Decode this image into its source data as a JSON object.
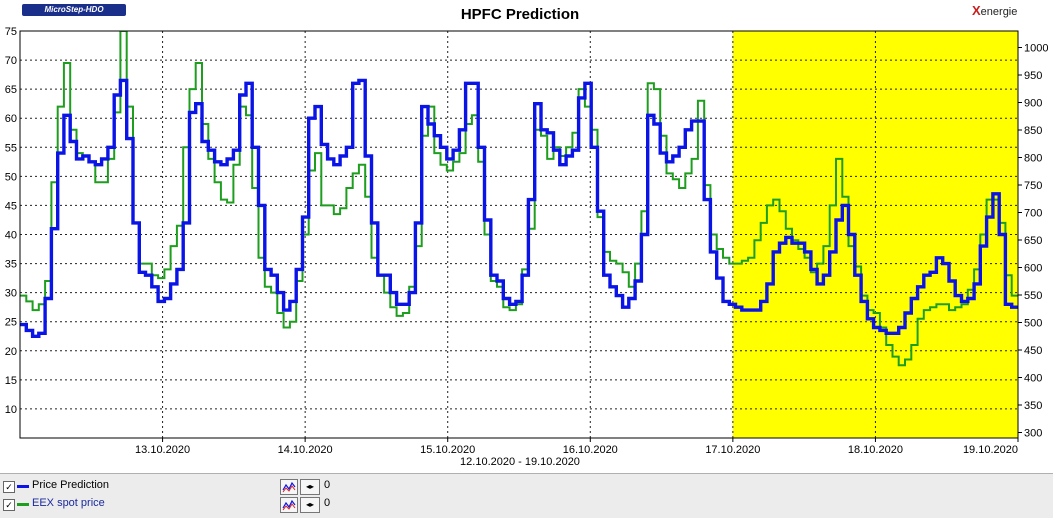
{
  "header": {
    "title": "HPFC Prediction",
    "logo_left": "MicroStep-HDO",
    "logo_right_x": "X",
    "logo_right_rest": "energie",
    "period": "12.10.2020 - 19.10.2020"
  },
  "legend": [
    {
      "label": "Price Prediction",
      "color": "#0a14e6",
      "value": "0"
    },
    {
      "label": "EEX spot price",
      "color": "#1e9e1e",
      "value": "0"
    }
  ],
  "colors": {
    "highlight": "#ffff00",
    "prediction": "#0a14e6",
    "spot": "#1e9e1e"
  },
  "chart_data": {
    "type": "line",
    "title": "HPFC Prediction",
    "x_range": [
      "12.10.2020 00:00",
      "19.10.2020 00:00"
    ],
    "x_ticks": [
      "13.10.2020",
      "14.10.2020",
      "15.10.2020",
      "16.10.2020",
      "17.10.2020",
      "18.10.2020",
      "19.10.2020"
    ],
    "y_left": {
      "ticks": [
        10,
        15,
        20,
        25,
        30,
        35,
        40,
        45,
        50,
        55,
        60,
        65,
        70,
        75
      ],
      "lim": [
        5,
        75
      ]
    },
    "y_right": {
      "ticks": [
        300,
        350,
        400,
        450,
        500,
        550,
        600,
        650,
        700,
        750,
        800,
        850,
        900,
        950,
        1000
      ],
      "lim": [
        290,
        1030
      ]
    },
    "highlight_range": [
      "17.10.2020",
      "19.10.2020"
    ],
    "grid": true,
    "series": [
      {
        "name": "Price Prediction",
        "values": [
          24.5,
          23.5,
          22.5,
          23,
          29,
          41,
          54,
          60.5,
          56,
          53,
          53.5,
          52.5,
          52,
          53,
          55,
          64,
          66.5,
          56.5,
          42,
          33.5,
          33,
          31,
          28.5,
          29,
          31.5,
          34,
          42,
          61,
          62.5,
          56,
          54.5,
          52.5,
          52,
          53,
          54.5,
          64,
          66,
          55,
          45,
          34,
          33,
          30,
          27,
          28.5,
          34,
          43,
          60,
          62,
          55.5,
          53,
          52,
          53.5,
          55,
          66,
          66.5,
          53.5,
          42,
          33,
          33,
          30,
          28,
          28,
          30,
          42,
          62,
          59,
          57,
          55,
          53,
          54.5,
          58,
          66,
          66,
          55,
          42.5,
          33,
          32,
          29,
          28,
          28.5,
          33,
          46,
          62.5,
          58,
          57.5,
          54.5,
          52,
          53.5,
          54.5,
          63.5,
          66,
          55,
          44,
          33,
          31,
          29.5,
          27.5,
          29,
          32,
          40,
          60.5,
          59,
          54,
          52.5,
          53.5,
          55,
          58,
          59.5,
          59.5,
          46,
          37,
          32.5,
          28.5,
          28,
          27.5,
          27,
          27,
          27,
          28.5,
          31.5,
          37,
          38.5,
          39.5,
          38.5,
          38.5,
          37,
          34,
          31.5,
          33,
          37,
          42.5,
          45,
          40,
          33,
          28.5,
          25.5,
          24,
          23.5,
          23,
          23,
          24,
          26.5,
          29,
          31,
          33,
          33.5,
          36,
          35,
          32,
          29.5,
          28.5,
          29,
          31.5,
          38,
          43,
          47,
          40,
          28,
          27.5
        ]
      },
      {
        "name": "EEX spot price",
        "values": [
          29.5,
          28.5,
          27,
          28,
          32,
          49,
          62,
          69.5,
          58,
          54,
          53.5,
          52.5,
          49,
          49,
          53,
          61,
          75,
          62,
          42,
          35,
          35,
          33,
          32.5,
          34,
          38,
          41.5,
          55,
          65,
          69.5,
          59,
          53,
          49,
          46,
          45.5,
          52,
          62,
          60.5,
          48,
          36,
          31,
          30,
          26.5,
          24,
          25,
          32,
          40,
          51,
          54,
          45,
          45,
          43.5,
          44.5,
          48,
          50.5,
          52,
          46.5,
          36,
          33,
          30,
          27.5,
          26,
          26.5,
          31,
          38,
          57,
          62,
          54,
          52,
          51,
          52.5,
          54,
          59,
          60.5,
          52.5,
          40,
          32,
          31,
          27.5,
          27,
          28,
          34,
          41,
          58,
          57,
          53,
          55,
          53.5,
          55,
          57.5,
          65,
          62,
          58,
          43,
          37,
          35.5,
          35,
          33.5,
          31,
          35,
          44,
          66,
          65,
          57,
          50.5,
          49.5,
          48,
          50.5,
          53,
          63,
          48.5,
          40,
          37.5,
          36,
          35,
          35,
          35.5,
          36,
          39,
          42,
          45,
          46,
          44,
          41,
          39,
          37.5,
          36,
          33.5,
          35,
          38,
          45,
          53,
          46.5,
          38,
          34.5,
          29.5,
          27,
          26.5,
          24,
          21,
          19,
          17.5,
          18.5,
          21,
          25.5,
          27,
          27.5,
          28,
          28,
          27,
          27.5,
          28,
          30.5,
          34,
          40,
          46,
          46,
          42,
          33,
          29.5
        ]
      }
    ]
  }
}
